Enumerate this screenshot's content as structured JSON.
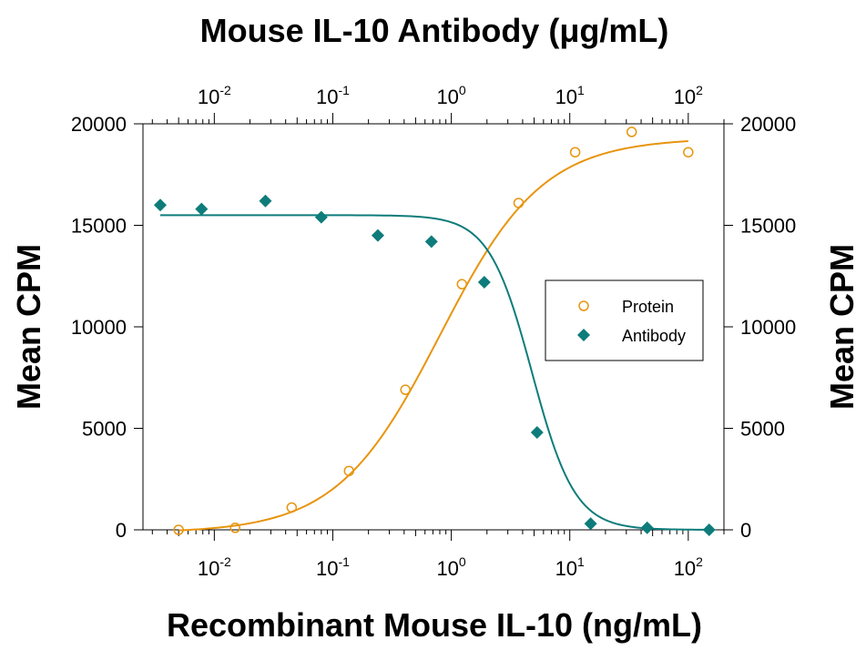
{
  "chart_data": {
    "type": "scatter",
    "title_top": "Mouse IL-10 Antibody (μg/mL)",
    "xlabel": "Recombinant Mouse IL-10 (ng/mL)",
    "ylabel_left": "Mean CPM",
    "ylabel_right": "Mean CPM",
    "x_scale": "log",
    "xlim_bottom": [
      0.0025,
      200
    ],
    "xlim_top": [
      0.0025,
      200
    ],
    "ylim": [
      0,
      20000
    ],
    "y_ticks": [
      0,
      5000,
      10000,
      15000,
      20000
    ],
    "x_ticks_bottom": [
      {
        "base": "10",
        "exp": "-2",
        "value": 0.01
      },
      {
        "base": "10",
        "exp": "-1",
        "value": 0.1
      },
      {
        "base": "10",
        "exp": "0",
        "value": 1
      },
      {
        "base": "10",
        "exp": "1",
        "value": 10
      },
      {
        "base": "10",
        "exp": "2",
        "value": 100
      }
    ],
    "x_ticks_top": [
      {
        "base": "10",
        "exp": "-2",
        "value": 0.01
      },
      {
        "base": "10",
        "exp": "-1",
        "value": 0.1
      },
      {
        "base": "10",
        "exp": "0",
        "value": 1
      },
      {
        "base": "10",
        "exp": "1",
        "value": 10
      },
      {
        "base": "10",
        "exp": "2",
        "value": 100
      }
    ],
    "legend": {
      "placement": "right",
      "entries": [
        "Protein",
        "Antibody"
      ]
    },
    "series": [
      {
        "name": "Protein",
        "axis": "bottom",
        "marker": "open-circle",
        "color": "#E8940E",
        "points": [
          [
            0.005,
            0
          ],
          [
            0.015,
            100
          ],
          [
            0.045,
            1100
          ],
          [
            0.137,
            2900
          ],
          [
            0.41,
            6900
          ],
          [
            1.23,
            12100
          ],
          [
            3.7,
            16100
          ],
          [
            11.1,
            18600
          ],
          [
            33.3,
            19600
          ],
          [
            100,
            18600
          ]
        ]
      },
      {
        "name": "Antibody",
        "axis": "top",
        "marker": "filled-diamond",
        "color": "#0E7C7B",
        "points": [
          [
            0.0035,
            16000
          ],
          [
            0.0078,
            15800
          ],
          [
            0.027,
            16200
          ],
          [
            0.08,
            15400
          ],
          [
            0.24,
            14500
          ],
          [
            0.68,
            14200
          ],
          [
            1.9,
            12200
          ],
          [
            5.3,
            4800
          ],
          [
            15,
            300
          ],
          [
            45,
            100
          ],
          [
            150,
            0
          ]
        ]
      }
    ],
    "fits": [
      {
        "series": "Protein",
        "axis": "bottom",
        "type": "logistic",
        "bottom": -150,
        "top": 19300,
        "ec50": 0.8,
        "hill": 1.0,
        "x_range": [
          0.005,
          100
        ],
        "color": "#E8940E"
      },
      {
        "series": "Antibody",
        "axis": "top",
        "type": "logistic",
        "bottom": 0,
        "top": 15500,
        "ec50": 4.8,
        "hill": -2.4,
        "x_range": [
          0.0035,
          150
        ],
        "color": "#0E7C7B"
      }
    ]
  }
}
